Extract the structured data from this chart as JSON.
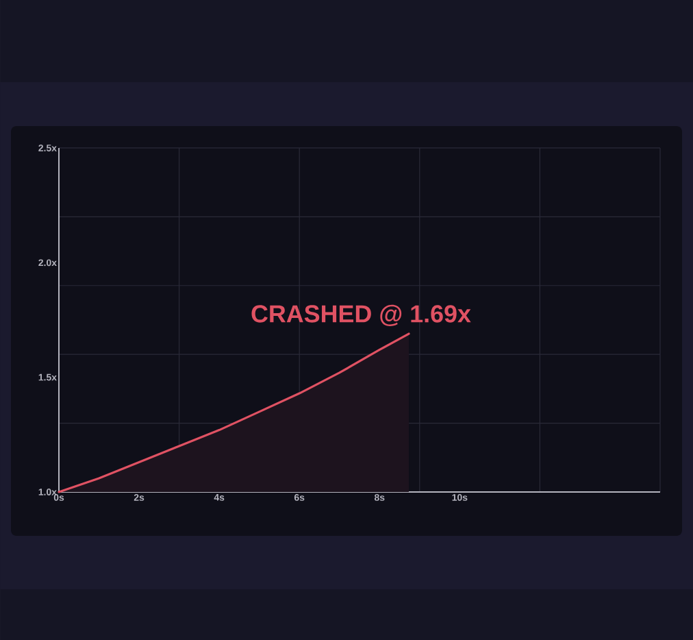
{
  "chart_data": {
    "type": "area",
    "x": [
      0,
      1,
      2,
      3,
      4,
      5,
      6,
      7,
      8,
      8.73
    ],
    "values": [
      1.0,
      1.06,
      1.13,
      1.2,
      1.27,
      1.35,
      1.43,
      1.52,
      1.62,
      1.69
    ],
    "color": "#e05263",
    "xlim": [
      0,
      15
    ],
    "ylim": [
      1,
      2.5
    ],
    "xticks": [
      {
        "value": 0,
        "label": "0s"
      },
      {
        "value": 2,
        "label": "2s"
      },
      {
        "value": 3,
        "label": null
      },
      {
        "value": 4,
        "label": "4s"
      },
      {
        "value": 6,
        "label": "6s"
      },
      {
        "value": 6,
        "label": null
      },
      {
        "value": 8,
        "label": "8s"
      },
      {
        "value": 9,
        "label": null
      },
      {
        "value": 10,
        "label": "10s"
      },
      {
        "value": 12,
        "label": null
      },
      {
        "value": 15,
        "label": null
      }
    ],
    "yticks": [
      {
        "value": 1,
        "label": "1.0x"
      },
      {
        "value": 1.3,
        "label": null
      },
      {
        "value": 1.5,
        "label": "1.5x"
      },
      {
        "value": 1.6,
        "label": null
      },
      {
        "value": 1.9,
        "label": null
      },
      {
        "value": 2,
        "label": "2.0x"
      },
      {
        "value": 2.2,
        "label": null
      },
      {
        "value": 2.5,
        "label": "2.5x"
      },
      {
        "value": 2.5,
        "label": null
      }
    ],
    "grid": true,
    "annotations": [
      {
        "text": "CRASHED @ 1.69x",
        "x": 8.73,
        "y": 1.69
      }
    ]
  }
}
